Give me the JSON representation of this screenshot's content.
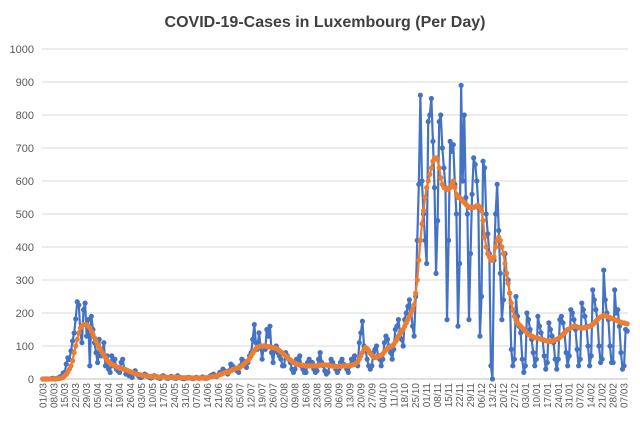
{
  "chart_data": {
    "type": "line",
    "title": "COVID-19-Cases in Luxembourg (Per Day)",
    "categories": [
      "01/03",
      null,
      null,
      null,
      null,
      null,
      null,
      "08/03",
      null,
      null,
      null,
      null,
      null,
      null,
      "15/03",
      null,
      null,
      null,
      null,
      null,
      null,
      "22/03",
      null,
      null,
      null,
      null,
      null,
      null,
      "29/03",
      null,
      null,
      null,
      null,
      null,
      null,
      "05/04",
      null,
      null,
      null,
      null,
      null,
      null,
      "12/04",
      null,
      null,
      null,
      null,
      null,
      null,
      "19/04",
      null,
      null,
      null,
      null,
      null,
      null,
      "26/04",
      null,
      null,
      null,
      null,
      null,
      null,
      "03/05",
      null,
      null,
      null,
      null,
      null,
      null,
      "10/05",
      null,
      null,
      null,
      null,
      null,
      null,
      "17/05",
      null,
      null,
      null,
      null,
      null,
      null,
      "24/05",
      null,
      null,
      null,
      null,
      null,
      null,
      "31/05",
      null,
      null,
      null,
      null,
      null,
      null,
      "07/06",
      null,
      null,
      null,
      null,
      null,
      null,
      "14/06",
      null,
      null,
      null,
      null,
      null,
      null,
      "21/06",
      null,
      null,
      null,
      null,
      null,
      null,
      "28/06",
      null,
      null,
      null,
      null,
      null,
      null,
      "05/07",
      null,
      null,
      null,
      null,
      null,
      null,
      "12/07",
      null,
      null,
      null,
      null,
      null,
      null,
      "19/07",
      null,
      null,
      null,
      null,
      null,
      null,
      "26/07",
      null,
      null,
      null,
      null,
      null,
      null,
      "02/08",
      null,
      null,
      null,
      null,
      null,
      null,
      "09/08",
      null,
      null,
      null,
      null,
      null,
      null,
      "16/08",
      null,
      null,
      null,
      null,
      null,
      null,
      "23/08",
      null,
      null,
      null,
      null,
      null,
      null,
      "30/08",
      null,
      null,
      null,
      null,
      null,
      null,
      "06/09",
      null,
      null,
      null,
      null,
      null,
      null,
      "13/09",
      null,
      null,
      null,
      null,
      null,
      null,
      "20/09",
      null,
      null,
      null,
      null,
      null,
      null,
      "27/09",
      null,
      null,
      null,
      null,
      null,
      null,
      "04/10",
      null,
      null,
      null,
      null,
      null,
      null,
      "11/10",
      null,
      null,
      null,
      null,
      null,
      null,
      "18/10",
      null,
      null,
      null,
      null,
      null,
      null,
      "25/10",
      null,
      null,
      null,
      null,
      null,
      null,
      "01/11",
      null,
      null,
      null,
      null,
      null,
      null,
      "08/11",
      null,
      null,
      null,
      null,
      null,
      null,
      "15/11",
      null,
      null,
      null,
      null,
      null,
      null,
      "22/11",
      null,
      null,
      null,
      null,
      null,
      null,
      "29/11",
      null,
      null,
      null,
      null,
      null,
      null,
      "06/12",
      null,
      null,
      null,
      null,
      null,
      null,
      "13/12",
      null,
      null,
      null,
      null,
      null,
      null,
      "20/12",
      null,
      null,
      null,
      null,
      null,
      null,
      "27/12",
      null,
      null,
      null,
      null,
      null,
      null,
      "03/01",
      null,
      null,
      null,
      null,
      null,
      null,
      "10/01",
      null,
      null,
      null,
      null,
      null,
      null,
      "17/01",
      null,
      null,
      null,
      null,
      null,
      null,
      "24/01",
      null,
      null,
      null,
      null,
      null,
      null,
      "31/01",
      null,
      null,
      null,
      null,
      null,
      null,
      "07/02",
      null,
      null,
      null,
      null,
      null,
      null,
      "14/02",
      null,
      null,
      null,
      null,
      null,
      null,
      "21/02",
      null,
      null,
      null,
      null,
      null,
      null,
      "28/02",
      null,
      null,
      null,
      null,
      null,
      null,
      "07/03",
      null,
      null
    ],
    "series": [
      {
        "color": "#4472c4",
        "values": [
          0,
          0,
          0,
          0,
          0,
          0,
          2,
          2,
          0,
          2,
          3,
          7,
          7,
          18,
          20,
          45,
          64,
          59,
          85,
          115,
          139,
          182,
          234,
          224,
          140,
          110,
          210,
          230,
          130,
          180,
          40,
          190,
          150,
          110,
          80,
          50,
          120,
          70,
          80,
          110,
          40,
          70,
          30,
          20,
          70,
          40,
          60,
          30,
          25,
          20,
          50,
          60,
          30,
          15,
          25,
          10,
          10,
          5,
          20,
          25,
          15,
          10,
          5,
          5,
          10,
          15,
          12,
          8,
          5,
          3,
          5,
          10,
          8,
          5,
          3,
          2,
          8,
          10,
          6,
          3,
          2,
          5,
          8,
          4,
          3,
          2,
          10,
          6,
          4,
          2,
          1,
          2,
          3,
          5,
          4,
          2,
          1,
          3,
          5,
          3,
          2,
          4,
          6,
          3,
          2,
          3,
          5,
          10,
          12,
          15,
          10,
          8,
          12,
          20,
          15,
          30,
          25,
          20,
          15,
          25,
          45,
          40,
          35,
          30,
          25,
          20,
          40,
          60,
          55,
          45,
          35,
          50,
          70,
          80,
          120,
          165,
          110,
          90,
          140,
          100,
          60,
          100,
          90,
          150,
          130,
          160,
          80,
          50,
          90,
          100,
          80,
          70,
          60,
          40,
          40,
          80,
          70,
          60,
          50,
          30,
          20,
          30,
          60,
          50,
          70,
          40,
          30,
          20,
          20,
          50,
          60,
          40,
          50,
          30,
          20,
          25,
          60,
          80,
          50,
          40,
          25,
          15,
          20,
          40,
          60,
          50,
          40,
          30,
          20,
          30,
          50,
          60,
          45,
          40,
          30,
          20,
          40,
          60,
          55,
          70,
          50,
          40,
          110,
          140,
          175,
          100,
          90,
          60,
          40,
          30,
          40,
          80,
          90,
          100,
          70,
          60,
          40,
          60,
          110,
          130,
          120,
          100,
          80,
          60,
          90,
          150,
          160,
          180,
          140,
          120,
          100,
          180,
          200,
          220,
          240,
          210,
          160,
          130,
          250,
          420,
          590,
          860,
          600,
          500,
          420,
          350,
          780,
          800,
          850,
          720,
          580,
          320,
          480,
          780,
          800,
          700,
          640,
          580,
          180,
          420,
          720,
          690,
          710,
          590,
          500,
          160,
          350,
          890,
          600,
          800,
          550,
          500,
          180,
          380,
          560,
          670,
          650,
          600,
          520,
          130,
          250,
          660,
          640,
          500,
          440,
          380,
          40,
          0,
          360,
          500,
          590,
          450,
          320,
          180,
          240,
          380,
          320,
          300,
          260,
          90,
          40,
          60,
          250,
          190,
          160,
          140,
          60,
          20,
          40,
          200,
          180,
          150,
          120,
          80,
          40,
          60,
          190,
          160,
          140,
          120,
          70,
          30,
          50,
          170,
          150,
          130,
          110,
          60,
          30,
          60,
          180,
          190,
          170,
          140,
          80,
          40,
          70,
          210,
          200,
          180,
          150,
          90,
          40,
          60,
          230,
          210,
          190,
          160,
          100,
          40,
          70,
          270,
          240,
          210,
          180,
          100,
          50,
          60,
          330,
          240,
          200,
          180,
          100,
          50,
          50,
          270,
          200,
          210,
          160,
          80,
          30,
          40,
          150,
          145
        ]
      },
      {
        "color": "#ed7d31",
        "values": [
          0,
          0,
          0,
          0,
          0,
          0,
          0,
          1,
          1,
          1,
          1,
          2,
          3,
          5,
          10,
          14,
          22,
          30,
          40,
          55,
          80,
          100,
          120,
          140,
          155,
          160,
          165,
          165,
          165,
          160,
          155,
          145,
          135,
          125,
          115,
          105,
          95,
          88,
          80,
          72,
          65,
          58,
          52,
          48,
          45,
          42,
          40,
          38,
          35,
          33,
          32,
          31,
          30,
          28,
          26,
          24,
          22,
          20,
          18,
          16,
          15,
          14,
          13,
          12,
          11,
          10,
          9,
          9,
          8,
          8,
          7,
          7,
          7,
          6,
          6,
          6,
          6,
          6,
          6,
          5,
          5,
          5,
          5,
          5,
          5,
          5,
          5,
          4,
          4,
          4,
          4,
          4,
          3,
          3,
          3,
          3,
          3,
          3,
          3,
          3,
          3,
          3,
          3,
          3,
          4,
          4,
          5,
          6,
          7,
          8,
          9,
          10,
          11,
          13,
          15,
          17,
          19,
          20,
          20,
          22,
          25,
          28,
          30,
          32,
          33,
          34,
          36,
          40,
          44,
          48,
          52,
          56,
          62,
          70,
          78,
          86,
          92,
          96,
          98,
          100,
          100,
          100,
          100,
          99,
          98,
          97,
          96,
          95,
          94,
          92,
          90,
          86,
          82,
          78,
          74,
          70,
          66,
          62,
          58,
          54,
          50,
          48,
          46,
          44,
          42,
          42,
          42,
          41,
          40,
          40,
          40,
          40,
          40,
          40,
          40,
          40,
          41,
          42,
          43,
          43,
          43,
          42,
          42,
          41,
          40,
          39,
          38,
          38,
          38,
          38,
          39,
          39,
          40,
          40,
          40,
          40,
          41,
          42,
          43,
          45,
          48,
          52,
          60,
          70,
          80,
          90,
          95,
          92,
          86,
          78,
          72,
          68,
          65,
          66,
          68,
          70,
          72,
          76,
          82,
          88,
          93,
          96,
          98,
          100,
          105,
          112,
          120,
          130,
          138,
          145,
          150,
          160,
          170,
          180,
          190,
          200,
          210,
          225,
          260,
          300,
          360,
          420,
          470,
          510,
          550,
          580,
          600,
          620,
          640,
          660,
          670,
          670,
          665,
          640,
          610,
          590,
          580,
          578,
          575,
          575,
          580,
          590,
          600,
          580,
          560,
          550,
          550,
          545,
          540,
          535,
          530,
          525,
          520,
          520,
          520,
          520,
          522,
          525,
          525,
          520,
          510,
          480,
          430,
          400,
          380,
          370,
          360,
          360,
          370,
          400,
          420,
          430,
          420,
          400,
          380,
          350,
          320,
          290,
          260,
          230,
          210,
          190,
          180,
          170,
          165,
          160,
          155,
          150,
          145,
          140,
          135,
          132,
          130,
          128,
          125,
          125,
          123,
          122,
          121,
          120,
          118,
          116,
          115,
          114,
          114,
          115,
          116,
          118,
          120,
          122,
          126,
          130,
          135,
          140,
          145,
          150,
          152,
          155,
          158,
          160,
          160,
          158,
          156,
          155,
          154,
          155,
          156,
          157,
          158,
          160,
          162,
          165,
          170,
          175,
          180,
          185,
          188,
          190,
          192,
          192,
          190,
          188,
          186,
          184,
          182,
          180,
          178,
          176,
          174,
          172,
          170,
          170,
          168,
          167
        ]
      }
    ],
    "ylim": [
      0,
      1000
    ],
    "yticks": [
      0,
      100,
      200,
      300,
      400,
      500,
      600,
      700,
      800,
      900,
      1000
    ],
    "grid": true
  }
}
